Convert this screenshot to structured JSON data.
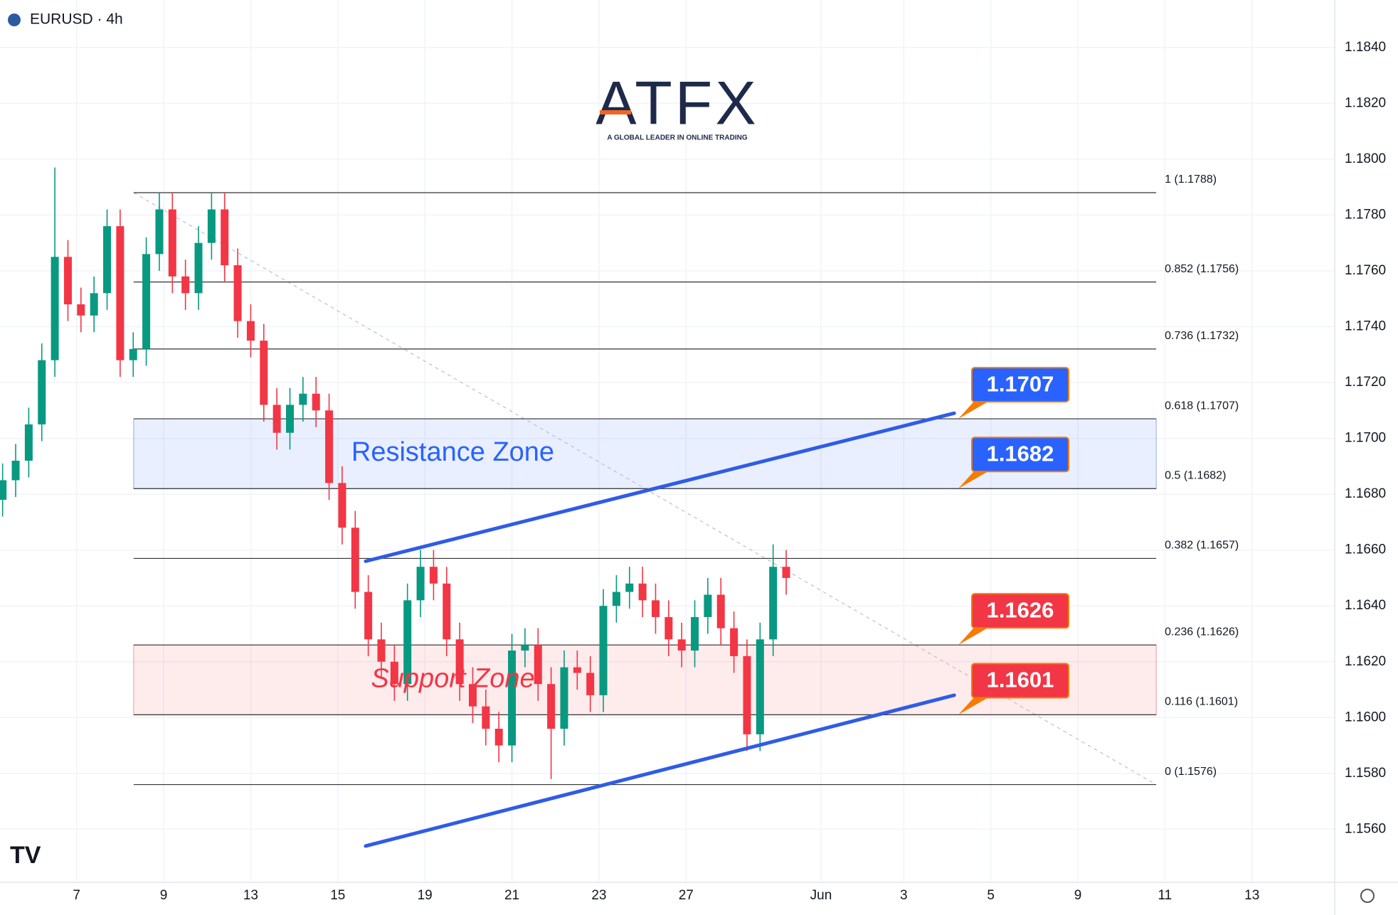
{
  "header": {
    "symbol": "EURUSD · 4h"
  },
  "logo": {
    "name": "ATFX",
    "tagline": "A GLOBAL LEADER IN ONLINE TRADING"
  },
  "chart_data": {
    "type": "candlestick",
    "grid": true,
    "up_color": "#089981",
    "down_color": "#f23645",
    "xlim": [
      -1.76,
      28.9
    ],
    "ylim": [
      1.1541,
      1.1857
    ],
    "xticks": [
      {
        "value": 0,
        "label": "7"
      },
      {
        "value": 2,
        "label": "9"
      },
      {
        "value": 4,
        "label": "13"
      },
      {
        "value": 6,
        "label": "15"
      },
      {
        "value": 8,
        "label": "19"
      },
      {
        "value": 10,
        "label": "21"
      },
      {
        "value": 12,
        "label": "23"
      },
      {
        "value": 14,
        "label": "27"
      },
      {
        "value": 17.1,
        "label": "Jun"
      },
      {
        "value": 19,
        "label": "3"
      },
      {
        "value": 21,
        "label": "5"
      },
      {
        "value": 23,
        "label": "9"
      },
      {
        "value": 25,
        "label": "11"
      },
      {
        "value": 27,
        "label": "13"
      }
    ],
    "yticks": [
      {
        "value": 1.156,
        "label": "1.1560"
      },
      {
        "value": 1.158,
        "label": "1.1580"
      },
      {
        "value": 1.16,
        "label": "1.1600"
      },
      {
        "value": 1.162,
        "label": "1.1620"
      },
      {
        "value": 1.164,
        "label": "1.1640"
      },
      {
        "value": 1.166,
        "label": "1.1660"
      },
      {
        "value": 1.168,
        "label": "1.1680"
      },
      {
        "value": 1.17,
        "label": "1.1700"
      },
      {
        "value": 1.172,
        "label": "1.1720"
      },
      {
        "value": 1.174,
        "label": "1.1740"
      },
      {
        "value": 1.176,
        "label": "1.1760"
      },
      {
        "value": 1.178,
        "label": "1.1780"
      },
      {
        "value": 1.18,
        "label": "1.1800"
      },
      {
        "value": 1.182,
        "label": "1.1820"
      },
      {
        "value": 1.184,
        "label": "1.1840"
      }
    ],
    "x": [
      -1.7,
      -1.4,
      -1.1,
      -0.8,
      -0.5,
      -0.2,
      0.1,
      0.4,
      0.7,
      1.0,
      1.3,
      1.6,
      1.9,
      2.2,
      2.5,
      2.8,
      3.1,
      3.4,
      3.7,
      4.0,
      4.3,
      4.6,
      4.9,
      5.2,
      5.5,
      5.8,
      6.1,
      6.4,
      6.7,
      7.0,
      7.3,
      7.6,
      7.9,
      8.2,
      8.5,
      8.8,
      9.1,
      9.4,
      9.7,
      10.0,
      10.3,
      10.6,
      10.9,
      11.2,
      11.5,
      11.8,
      12.1,
      12.4,
      12.7,
      13.0,
      13.3,
      13.6,
      13.9,
      14.2,
      14.5,
      14.8,
      15.1,
      15.4,
      15.7,
      16.0,
      16.3
    ],
    "open": [
      1.1678,
      1.1685,
      1.1692,
      1.1705,
      1.1728,
      1.1765,
      1.1748,
      1.1744,
      1.1752,
      1.1776,
      1.1728,
      1.1732,
      1.1766,
      1.1782,
      1.1758,
      1.1752,
      1.177,
      1.1782,
      1.1762,
      1.1742,
      1.1735,
      1.1712,
      1.1702,
      1.1712,
      1.1716,
      1.171,
      1.1684,
      1.1668,
      1.1645,
      1.1628,
      1.162,
      1.1612,
      1.1642,
      1.1654,
      1.1648,
      1.1628,
      1.1612,
      1.1604,
      1.1596,
      1.159,
      1.1624,
      1.1626,
      1.1612,
      1.1596,
      1.1618,
      1.1616,
      1.1608,
      1.164,
      1.1645,
      1.1648,
      1.1642,
      1.1636,
      1.1628,
      1.1624,
      1.1636,
      1.1644,
      1.1632,
      1.1622,
      1.1594,
      1.1628,
      1.1654
    ],
    "high": [
      1.1691,
      1.1698,
      1.1711,
      1.1734,
      1.1797,
      1.1771,
      1.1754,
      1.1758,
      1.1782,
      1.1782,
      1.1738,
      1.1772,
      1.1788,
      1.1788,
      1.1764,
      1.1776,
      1.1788,
      1.1788,
      1.1768,
      1.1748,
      1.1741,
      1.1718,
      1.1718,
      1.1722,
      1.1722,
      1.1716,
      1.169,
      1.1674,
      1.1651,
      1.1634,
      1.1626,
      1.1648,
      1.166,
      1.166,
      1.1654,
      1.1634,
      1.1618,
      1.161,
      1.1602,
      1.163,
      1.1632,
      1.1632,
      1.1618,
      1.1624,
      1.1624,
      1.1622,
      1.1646,
      1.1651,
      1.1654,
      1.1654,
      1.1648,
      1.1642,
      1.1634,
      1.1642,
      1.165,
      1.165,
      1.1638,
      1.1628,
      1.1634,
      1.1662,
      1.166
    ],
    "low": [
      1.1672,
      1.1679,
      1.1686,
      1.1699,
      1.1722,
      1.1742,
      1.1738,
      1.1738,
      1.1746,
      1.1722,
      1.1722,
      1.1726,
      1.176,
      1.1752,
      1.1746,
      1.1746,
      1.1764,
      1.1756,
      1.1736,
      1.1729,
      1.1706,
      1.1696,
      1.1696,
      1.1706,
      1.1704,
      1.1678,
      1.1662,
      1.1639,
      1.1622,
      1.1614,
      1.1606,
      1.1606,
      1.1636,
      1.1642,
      1.1622,
      1.1606,
      1.1598,
      1.159,
      1.1584,
      1.1584,
      1.1618,
      1.1606,
      1.1578,
      1.159,
      1.161,
      1.1602,
      1.1602,
      1.1634,
      1.1639,
      1.1636,
      1.163,
      1.1622,
      1.1618,
      1.1618,
      1.163,
      1.1626,
      1.1616,
      1.1588,
      1.1588,
      1.1622,
      1.1644
    ],
    "close": [
      1.1685,
      1.1692,
      1.1705,
      1.1728,
      1.1765,
      1.1748,
      1.1744,
      1.1752,
      1.1776,
      1.1728,
      1.1732,
      1.1766,
      1.1782,
      1.1758,
      1.1752,
      1.177,
      1.1782,
      1.1762,
      1.1742,
      1.1735,
      1.1712,
      1.1702,
      1.1712,
      1.1716,
      1.171,
      1.1684,
      1.1668,
      1.1645,
      1.1628,
      1.162,
      1.1612,
      1.1642,
      1.1654,
      1.1648,
      1.1628,
      1.1612,
      1.1604,
      1.1596,
      1.159,
      1.1624,
      1.1626,
      1.1612,
      1.1596,
      1.1618,
      1.1616,
      1.1608,
      1.164,
      1.1645,
      1.1648,
      1.1642,
      1.1636,
      1.1628,
      1.1624,
      1.1636,
      1.1644,
      1.1632,
      1.1622,
      1.1594,
      1.1628,
      1.1654,
      1.165
    ],
    "fib_x": [
      1.31,
      24.8
    ],
    "fib_levels": [
      {
        "label": "1 (1.1788)",
        "value": 1.1788
      },
      {
        "label": "0.852 (1.1756)",
        "value": 1.1756
      },
      {
        "label": "0.736 (1.1732)",
        "value": 1.1732
      },
      {
        "label": "0.618 (1.1707)",
        "value": 1.1707
      },
      {
        "label": "0.5 (1.1682)",
        "value": 1.1682
      },
      {
        "label": "0.382 (1.1657)",
        "value": 1.1657
      },
      {
        "label": "0.236 (1.1626)",
        "value": 1.1626
      },
      {
        "label": "0.116 (1.1601)",
        "value": 1.1601
      },
      {
        "label": "0 (1.1576)",
        "value": 1.1576
      }
    ],
    "fib_trend": {
      "x": [
        1.31,
        24.8
      ],
      "y": [
        1.1788,
        1.1576
      ]
    },
    "zones": [
      {
        "label": "Resistance Zone",
        "low": 1.1682,
        "high": 1.1707,
        "color": "#2962ff"
      },
      {
        "label": "Support Zone",
        "low": 1.1601,
        "high": 1.1626,
        "color": "#f23645"
      }
    ],
    "trend_lines": [
      {
        "x": [
          6.64,
          20.16
        ],
        "y": [
          1.1656,
          1.1709
        ],
        "color": "#2f5ce6"
      },
      {
        "x": [
          6.64,
          20.16
        ],
        "y": [
          1.1554,
          1.1608
        ],
        "color": "#2f5ce6"
      }
    ],
    "callouts": [
      {
        "value": 1.1707,
        "color": "#2962ff"
      },
      {
        "value": 1.1682,
        "color": "#2962ff"
      },
      {
        "value": 1.1626,
        "color": "#f23645"
      },
      {
        "value": 1.1601,
        "color": "#f23645"
      }
    ]
  }
}
